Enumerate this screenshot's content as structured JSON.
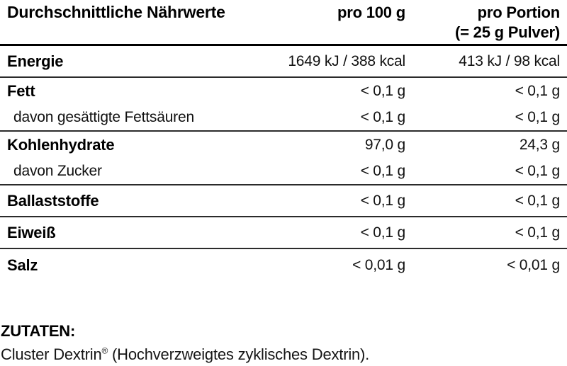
{
  "nutrition_table": {
    "header": {
      "title": "Durchschnittliche Nährwerte",
      "per_100g": "pro 100 g",
      "per_portion_line1": "pro Portion",
      "per_portion_line2": "(= 25 g Pulver)"
    },
    "rows": [
      {
        "label": "Energie",
        "per_100g": "1649 kJ / 388 kcal",
        "per_portion": "413 kJ / 98 kcal"
      },
      {
        "label": "Fett",
        "per_100g": "< 0,1 g",
        "per_portion": "< 0,1 g"
      },
      {
        "label": "davon gesättigte Fettsäuren",
        "per_100g": "< 0,1 g",
        "per_portion": "< 0,1 g"
      },
      {
        "label": "Kohlenhydrate",
        "per_100g": "97,0 g",
        "per_portion": "24,3 g"
      },
      {
        "label": "davon Zucker",
        "per_100g": "< 0,1 g",
        "per_portion": "< 0,1 g"
      },
      {
        "label": "Ballaststoffe",
        "per_100g": "< 0,1 g",
        "per_portion": "< 0,1 g"
      },
      {
        "label": "Eiweiß",
        "per_100g": "< 0,1 g",
        "per_portion": "< 0,1 g"
      },
      {
        "label": "Salz",
        "per_100g": "< 0,01 g",
        "per_portion": "< 0,01 g"
      }
    ]
  },
  "ingredients": {
    "heading": "ZUTATEN:",
    "name": "Cluster Dextrin",
    "trademark": "®",
    "description": " (Hochverzweigtes zyklisches Dextrin)."
  },
  "colors": {
    "text": "#000000",
    "rule_heavy": "#000000",
    "rule_light": "#2b2b2b",
    "background": "#ffffff"
  }
}
